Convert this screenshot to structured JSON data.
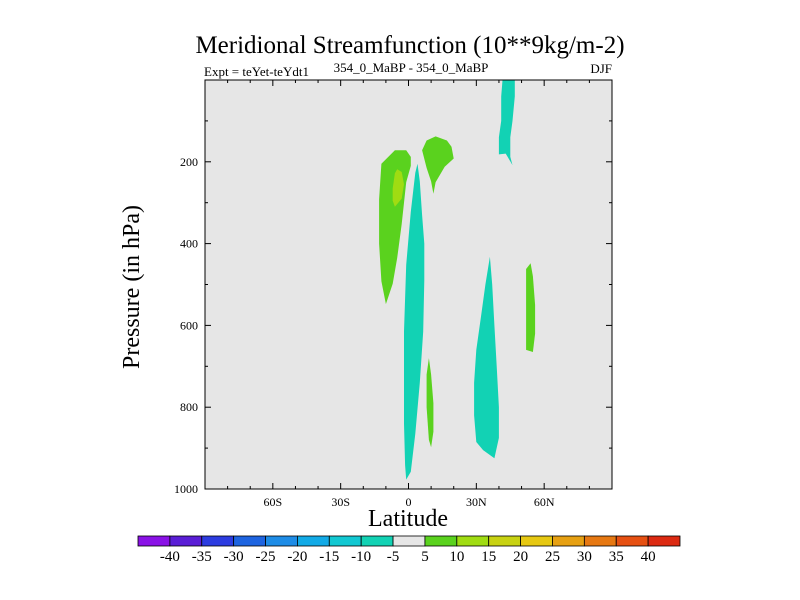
{
  "chart_data": {
    "type": "filled-contour",
    "title": "Meridional Streamfunction (10**9kg/m-2)",
    "subtitle_left": "Expt = teYet-teYdt1",
    "subtitle_center": "354_0_MaBP - 354_0_MaBP",
    "subtitle_right": "DJF",
    "xlabel": "Latitude",
    "ylabel": "Pressure (in hPa)",
    "xlim": [
      -90,
      90
    ],
    "ylim": [
      1000,
      0
    ],
    "xticks": [
      {
        "value": -60,
        "label": "60S"
      },
      {
        "value": -30,
        "label": "30S"
      },
      {
        "value": 0,
        "label": "0"
      },
      {
        "value": 30,
        "label": "30N"
      },
      {
        "value": 60,
        "label": "60N"
      }
    ],
    "yticks": [
      {
        "value": 200,
        "label": "200"
      },
      {
        "value": 400,
        "label": "400"
      },
      {
        "value": 600,
        "label": "600"
      },
      {
        "value": 800,
        "label": "800"
      },
      {
        "value": 1000,
        "label": "1000"
      }
    ],
    "background_color": "#e6e6e6",
    "colorbar": {
      "levels": [
        "-40",
        "-35",
        "-30",
        "-25",
        "-20",
        "-15",
        "-10",
        "-5",
        "5",
        "10",
        "15",
        "20",
        "25",
        "30",
        "35",
        "40"
      ],
      "colors": [
        "#8a12e6",
        "#5a1ed6",
        "#2c3ce0",
        "#1e64e0",
        "#1e8ce6",
        "#12aae6",
        "#12c8d2",
        "#12d2b4",
        "#e6e6e6",
        "#5ad21e",
        "#a0dc12",
        "#c8d212",
        "#e6c812",
        "#e6a012",
        "#e67812",
        "#e65012",
        "#dc2a12"
      ]
    },
    "regions": [
      {
        "name": "cyan-equatorial-column",
        "color": "#12d2b4",
        "points": [
          [
            -1,
            977
          ],
          [
            1,
            958
          ],
          [
            3,
            865
          ],
          [
            5,
            740
          ],
          [
            6.5,
            615
          ],
          [
            7,
            490
          ],
          [
            7,
            400
          ],
          [
            6,
            330
          ],
          [
            5,
            248
          ],
          [
            4,
            205
          ],
          [
            3,
            227
          ],
          [
            1,
            322
          ],
          [
            -1,
            452
          ],
          [
            -2,
            615
          ],
          [
            -2,
            738
          ],
          [
            -2,
            840
          ],
          [
            -1.5,
            942
          ]
        ]
      },
      {
        "name": "green-nh-thin-strip",
        "color": "#5ad21e",
        "points": [
          [
            10,
            898
          ],
          [
            11,
            860
          ],
          [
            11,
            790
          ],
          [
            10,
            720
          ],
          [
            9,
            680
          ],
          [
            8,
            720
          ],
          [
            8,
            800
          ],
          [
            9,
            880
          ]
        ]
      },
      {
        "name": "green-sh-upper-cell",
        "color": "#5ad21e",
        "points": [
          [
            -10,
            548
          ],
          [
            -7,
            498
          ],
          [
            -5,
            435
          ],
          [
            -3,
            352
          ],
          [
            -2,
            300
          ],
          [
            -1,
            250
          ],
          [
            1,
            210
          ],
          [
            1,
            188
          ],
          [
            -1,
            172
          ],
          [
            -6,
            172
          ],
          [
            -12,
            205
          ],
          [
            -13,
            292
          ],
          [
            -13,
            400
          ],
          [
            -12,
            492
          ]
        ]
      },
      {
        "name": "yellow-green-sh-core",
        "color": "#a0dc12",
        "points": [
          [
            -6,
            310
          ],
          [
            -3,
            290
          ],
          [
            -2,
            255
          ],
          [
            -3,
            225
          ],
          [
            -5,
            218
          ],
          [
            -6,
            228
          ],
          [
            -7,
            265
          ],
          [
            -7,
            295
          ]
        ]
      },
      {
        "name": "green-nh-upper-blob",
        "color": "#5ad21e",
        "points": [
          [
            11,
            278
          ],
          [
            12,
            250
          ],
          [
            16,
            212
          ],
          [
            20,
            192
          ],
          [
            19,
            163
          ],
          [
            17,
            148
          ],
          [
            12,
            138
          ],
          [
            8,
            148
          ],
          [
            6,
            172
          ],
          [
            8,
            215
          ],
          [
            10,
            248
          ]
        ]
      },
      {
        "name": "cyan-nh-upper-column",
        "color": "#12d2b4",
        "points": [
          [
            46,
            208
          ],
          [
            45,
            188
          ],
          [
            45,
            140
          ],
          [
            46,
            100
          ],
          [
            47,
            40
          ],
          [
            47,
            -30
          ],
          [
            42,
            -30
          ],
          [
            41,
            40
          ],
          [
            41,
            100
          ],
          [
            40,
            140
          ],
          [
            40,
            182
          ],
          [
            43,
            180
          ]
        ]
      },
      {
        "name": "cyan-nh-lower-column",
        "color": "#12d2b4",
        "points": [
          [
            38,
            925
          ],
          [
            40,
            875
          ],
          [
            40,
            800
          ],
          [
            39,
            700
          ],
          [
            38,
            600
          ],
          [
            37,
            500
          ],
          [
            36,
            432
          ],
          [
            34,
            500
          ],
          [
            32,
            580
          ],
          [
            30,
            660
          ],
          [
            29,
            740
          ],
          [
            29,
            820
          ],
          [
            30,
            885
          ],
          [
            33,
            905
          ]
        ]
      },
      {
        "name": "green-nh-lower-column",
        "color": "#5ad21e",
        "points": [
          [
            55,
            665
          ],
          [
            56,
            620
          ],
          [
            56,
            550
          ],
          [
            55,
            480
          ],
          [
            54,
            448
          ],
          [
            52,
            462
          ],
          [
            52,
            540
          ],
          [
            52,
            610
          ],
          [
            52,
            660
          ]
        ]
      }
    ]
  }
}
